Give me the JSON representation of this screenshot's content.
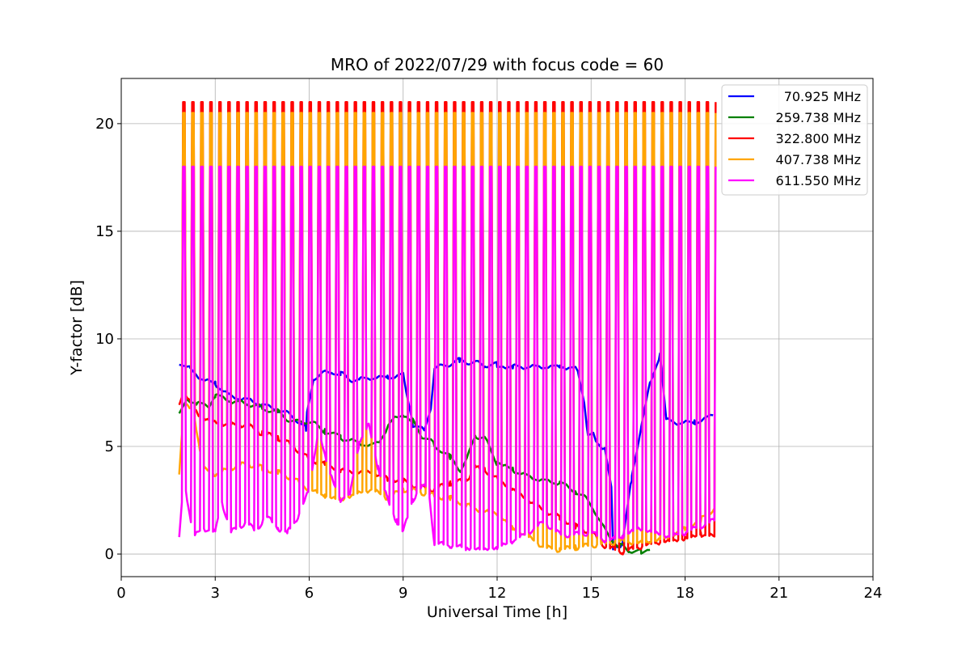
{
  "chart_data": {
    "type": "line",
    "title": "MRO of 2022/07/29 with focus code = 60",
    "xlabel": "Universal Time [h]",
    "ylabel": "Y-factor [dB]",
    "xlim": [
      0,
      24
    ],
    "ylim": [
      -1.05,
      22.1
    ],
    "xticks": [
      0,
      3,
      6,
      9,
      12,
      15,
      18,
      21,
      24
    ],
    "yticks": [
      0,
      5,
      10,
      15,
      20
    ],
    "grid": true,
    "legend_position": "top-right",
    "pulses": {
      "start_h": 2.0,
      "end_h": 19.0,
      "count": 60,
      "peak_values": {
        "322.800 MHz": 21.0,
        "407.738 MHz": 20.5,
        "611.550 MHz": 18.0
      }
    },
    "series": [
      {
        "name": "70.925 MHz",
        "color": "#0000ff",
        "x": [
          1.85,
          2.2,
          2.6,
          3.0,
          3.5,
          4.0,
          4.5,
          5.0,
          5.5,
          5.9,
          6.0,
          6.3,
          6.7,
          7.0,
          7.3,
          7.6,
          8.0,
          8.5,
          9.0,
          9.3,
          9.6,
          9.8,
          10.0,
          10.4,
          10.8,
          11.2,
          11.6,
          12.0,
          12.5,
          13.0,
          13.5,
          14.0,
          14.5,
          14.7,
          14.9,
          15.0,
          15.2,
          15.5,
          15.6,
          15.7,
          15.8,
          16.0,
          16.3,
          16.6,
          16.9,
          17.2,
          17.4,
          17.8,
          18.3,
          18.7,
          19.0
        ],
        "y": [
          8.8,
          8.6,
          8.1,
          7.9,
          7.3,
          7.2,
          6.9,
          6.7,
          6.4,
          5.8,
          8.1,
          8.3,
          8.5,
          8.4,
          8.1,
          8.1,
          8.2,
          8.2,
          8.3,
          6.0,
          5.8,
          5.6,
          8.6,
          8.8,
          9.0,
          8.9,
          8.8,
          8.8,
          8.7,
          8.7,
          8.7,
          8.7,
          8.6,
          8.3,
          5.4,
          5.8,
          5.0,
          5.0,
          5.3,
          0.3,
          0.1,
          0.6,
          3.5,
          6.0,
          8.0,
          9.3,
          6.2,
          6.1,
          6.1,
          6.3,
          6.6
        ]
      },
      {
        "name": "259.738 MHz",
        "color": "#008000",
        "x": [
          1.85,
          2.0,
          2.4,
          2.8,
          3.0,
          3.5,
          4.0,
          4.5,
          5.0,
          5.5,
          6.0,
          6.5,
          7.0,
          7.5,
          8.0,
          8.3,
          8.6,
          9.0,
          9.3,
          9.6,
          10.0,
          10.5,
          10.9,
          11.3,
          11.6,
          12.0,
          12.5,
          13.0,
          13.5,
          14.0,
          14.5,
          15.0,
          15.3,
          15.6,
          15.9,
          16.2,
          16.6,
          17.0
        ],
        "y": [
          6.5,
          7.3,
          7.0,
          6.9,
          7.4,
          7.1,
          7.0,
          6.8,
          6.6,
          6.1,
          6.2,
          5.7,
          5.4,
          5.2,
          5.0,
          5.3,
          6.2,
          6.5,
          6.2,
          5.5,
          5.1,
          4.5,
          3.8,
          5.5,
          5.4,
          4.2,
          3.9,
          3.6,
          3.4,
          3.3,
          2.9,
          2.4,
          1.4,
          0.8,
          0.4,
          0.2,
          0.1,
          0.4
        ]
      },
      {
        "name": "322.800 MHz",
        "color": "#ff0000",
        "x": [
          1.85,
          2.0,
          2.5,
          3.0,
          3.5,
          4.0,
          4.5,
          5.0,
          5.5,
          6.0,
          6.5,
          7.0,
          7.5,
          8.0,
          8.5,
          9.0,
          9.5,
          10.0,
          10.5,
          11.0,
          11.3,
          11.6,
          12.0,
          12.5,
          13.0,
          13.5,
          14.0,
          14.5,
          15.0,
          15.5,
          16.0,
          16.5,
          17.0,
          17.5,
          18.0,
          18.5,
          19.0
        ],
        "y": [
          7.0,
          7.5,
          6.4,
          6.1,
          6.0,
          6.0,
          5.6,
          5.4,
          5.0,
          4.4,
          4.2,
          3.9,
          3.8,
          3.8,
          3.5,
          3.4,
          3.1,
          3.0,
          3.3,
          3.4,
          4.0,
          3.9,
          3.5,
          3.0,
          2.5,
          2.0,
          1.7,
          1.3,
          1.0,
          0.3,
          0.1,
          0.3,
          0.5,
          0.6,
          0.7,
          0.9,
          0.8
        ]
      },
      {
        "name": "407.738 MHz",
        "color": "#ffa500",
        "x": [
          1.85,
          2.0,
          2.3,
          2.6,
          3.0,
          3.5,
          4.0,
          4.5,
          5.0,
          5.5,
          6.0,
          6.5,
          7.0,
          7.5,
          8.0,
          8.5,
          9.0,
          9.5,
          10.0,
          10.5,
          11.0,
          11.5,
          12.0,
          12.5,
          13.0,
          13.5,
          14.0,
          14.5,
          15.0,
          15.5,
          16.0,
          16.5,
          17.0,
          17.5,
          18.0,
          18.5,
          19.0
        ],
        "y": [
          3.6,
          7.0,
          6.7,
          4.0,
          3.7,
          4.0,
          4.2,
          4.0,
          3.8,
          3.5,
          3.0,
          2.7,
          2.5,
          2.8,
          3.0,
          2.6,
          3.0,
          2.9,
          2.7,
          2.6,
          2.3,
          2.0,
          1.9,
          1.2,
          0.8,
          0.3,
          0.2,
          0.3,
          0.4,
          0.5,
          0.6,
          0.5,
          0.6,
          0.8,
          1.2,
          1.6,
          2.2
        ]
      },
      {
        "name": "611.550 MHz",
        "color": "#ff00ff",
        "x": [
          1.85,
          2.0,
          2.3,
          2.6,
          3.0,
          3.2,
          3.5,
          4.0,
          4.3,
          4.6,
          5.0,
          5.3,
          5.6,
          6.0,
          6.3,
          6.6,
          7.0,
          7.3,
          7.6,
          7.9,
          8.2,
          8.5,
          8.8,
          9.0,
          9.3,
          9.5,
          9.8,
          10.0,
          10.5,
          11.0,
          11.5,
          12.0,
          12.5,
          13.0,
          13.5,
          14.0,
          14.5,
          15.0,
          15.5,
          16.0,
          16.5,
          17.0,
          17.5,
          18.0,
          18.5,
          19.0
        ],
        "y": [
          0.9,
          3.5,
          0.8,
          1.2,
          1.0,
          2.5,
          1.0,
          1.5,
          1.0,
          1.8,
          1.2,
          1.0,
          1.6,
          3.0,
          5.8,
          4.0,
          2.5,
          2.8,
          5.2,
          6.0,
          4.0,
          2.5,
          1.5,
          1.0,
          2.5,
          3.0,
          3.2,
          0.5,
          0.4,
          0.3,
          0.2,
          0.3,
          0.6,
          1.0,
          1.5,
          0.9,
          0.9,
          1.0,
          0.6,
          0.8,
          1.2,
          1.0,
          0.8,
          1.0,
          1.3,
          1.6
        ]
      }
    ]
  }
}
